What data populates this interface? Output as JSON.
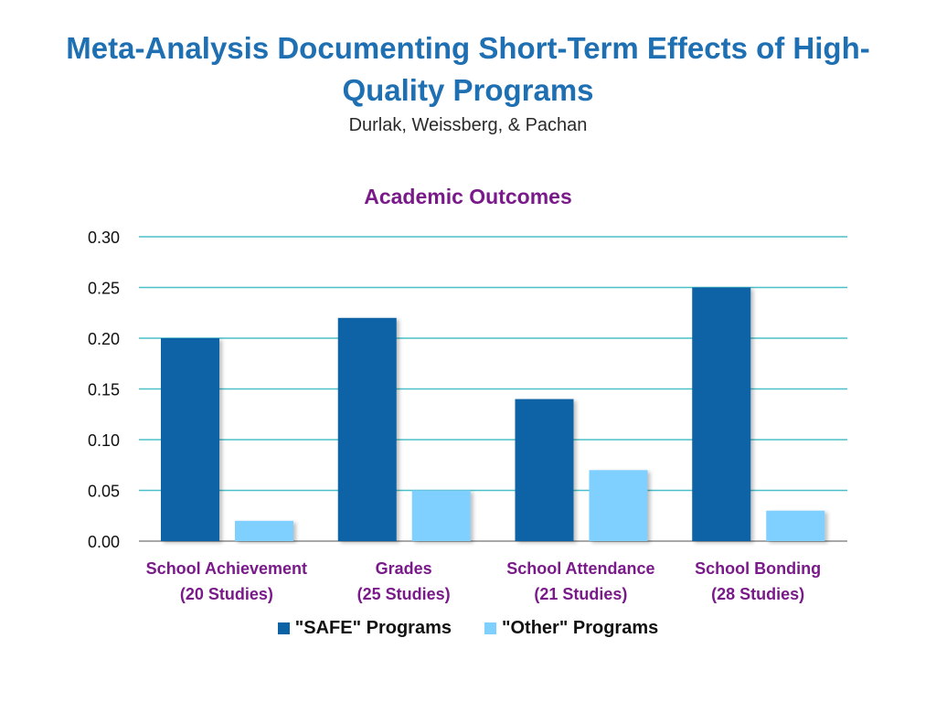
{
  "slide": {
    "title": "Meta-Analysis Documenting Short-Term Effects of High-Quality Programs",
    "subtitle": "Durlak, Weissberg, & Pachan"
  },
  "chart_data": {
    "type": "bar",
    "title": "Academic Outcomes",
    "xlabel": "",
    "ylabel": "",
    "ylim": [
      0,
      0.3
    ],
    "yticks": [
      "0.00",
      "0.05",
      "0.10",
      "0.15",
      "0.20",
      "0.25",
      "0.30"
    ],
    "grid": true,
    "legend_position": "bottom",
    "categories": [
      [
        "School Achievement",
        "(20 Studies)"
      ],
      [
        "Grades",
        "(25 Studies)"
      ],
      [
        "School Attendance",
        "(21 Studies)"
      ],
      [
        "School Bonding",
        "(28 Studies)"
      ]
    ],
    "series": [
      {
        "name": "\"SAFE\" Programs",
        "values": [
          0.2,
          0.22,
          0.14,
          0.25
        ],
        "color": "#0b63a6"
      },
      {
        "name": "\"Other\" Programs",
        "values": [
          0.02,
          0.05,
          0.07,
          0.03
        ],
        "color": "#7fcfff"
      }
    ],
    "colors": {
      "grid": "#4bbfc9",
      "axis": "#8c8c8c",
      "category_label": "#7a1a8a"
    }
  }
}
